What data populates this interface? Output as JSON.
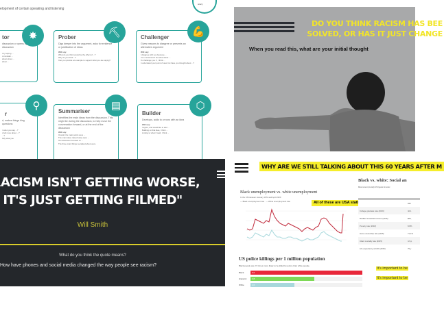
{
  "roles_slide": {
    "subtitle": "elopment of certain speaking and listening",
    "logo_text": "oracy",
    "cards": [
      {
        "title": "tor",
        "desc": "discussion or opens up for discussion",
        "will_say": "",
        "examples": "t by saying ...\nd consider ...\nabout about ...\nabout ...",
        "icon": "burst-icon"
      },
      {
        "title": "Prober",
        "desc": "Digs deeper into the argument, asks for evidence or justification of ideas",
        "will_say": "Will say:",
        "examples": "What do you think would be the effect of ...?\nWhy do you think ...?\nCan you provide an example to support what you are saying?",
        "icon": "shovel-icon"
      },
      {
        "title": "Challenger",
        "desc": "Gives reasons to disagree or presents an alternative argument",
        "will_say": "Will say:",
        "examples": "I disagree with you because ...\nYou mentioned X but what about ...\nTo challenge you X, I think ...\nI understand your point of view, but have you thought about ...?",
        "icon": "flexed-arm-icon"
      },
      {
        "title": "r",
        "desc": "d, makes things king questions",
        "will_say": "",
        "examples": "r when you say ...?\nd tell more about ...?\n...?\nfully what you",
        "icon": "magnifier-icon"
      },
      {
        "title": "Summariser",
        "desc": "Identifies the main ideas from the discussion. This might be during the discussion, to help move the conversation forward, or at the end of the discussion",
        "will_say": "Will say:",
        "examples": "Overall, the main points were ...\nThe main ideas raised today were ...\nOur discussion focused on ...\nThe three main things we talked about were",
        "icon": "document-icon"
      },
      {
        "title": "Builder",
        "desc": "Develops, adds to or runs with an idea",
        "will_say": "Will say:",
        "examples": "I agree, and would like to add ...\nBuilding on that idea, I think ...\nLinking to what X said, I think ...",
        "icon": "cubes-icon"
      }
    ]
  },
  "question_slide": {
    "title_line1": "DO YOU THINK RACISM HAS BEE",
    "title_line2": "SOLVED, OR HAS IT JUST CHANGE",
    "subtitle": "When you read this, what are your initial thought",
    "accent": "#f2e528"
  },
  "quote_slide": {
    "quote_line1": "\"RACISM ISN'T GETTING WORSE,",
    "quote_line2": "IT'S JUST GETTING FILMED\"",
    "author": "Will Smith",
    "question1": "What do you think the quote means?",
    "question2": "How have phones and social media changed the way people see racism?",
    "background": "#24272b",
    "accent": "#d9cc2a"
  },
  "stats_slide": {
    "title": "WHY ARE WE STILL TALKING ABOUT THIS 60 YEARS AFTER M",
    "unemployment_chart": {
      "title": "Black unemployment vs. white unemployment",
      "subtitle": "In the US between January 1972 and April 2020",
      "legend": [
        "Black unemployment rate",
        "White unemployment rate"
      ],
      "note": "All of these are USA statistics"
    },
    "killings_chart": {
      "title": "US police killings per 1 million population",
      "subtitle": "Black people are 2.5 times more likely to be killed by police than white people.",
      "bars": [
        {
          "label": "Black",
          "value": "6.6",
          "fraction": 1.0,
          "color": "#e8283a"
        },
        {
          "label": "Hispanic",
          "value": "3.8",
          "fraction": 0.57,
          "color": "#7ed957"
        },
        {
          "label": "White",
          "value": "2.6",
          "fraction": 0.39,
          "color": "#a8d8dc"
        }
      ]
    },
    "table": {
      "title": "Black vs. white: Social an",
      "subtitle": "Most recent (crucial) US figures for educ",
      "header": "Whi",
      "rows": [
        {
          "label": "College graduate rate (2016)",
          "value": "42.1"
        },
        {
          "label": "Median household income (2016)",
          "value": "$65,"
        },
        {
          "label": "Poverty rate (2018)",
          "value": "8.8%"
        },
        {
          "label": "Home ownership rate (2015)",
          "value": "71.1%"
        },
        {
          "label": "Infant mortality rate (2015)",
          "value": "4.9 p"
        },
        {
          "label": "Life expectancy at birth (2015)",
          "value": "79 y"
        }
      ]
    },
    "notes": [
      "It's important to be",
      "It's important to be"
    ]
  }
}
